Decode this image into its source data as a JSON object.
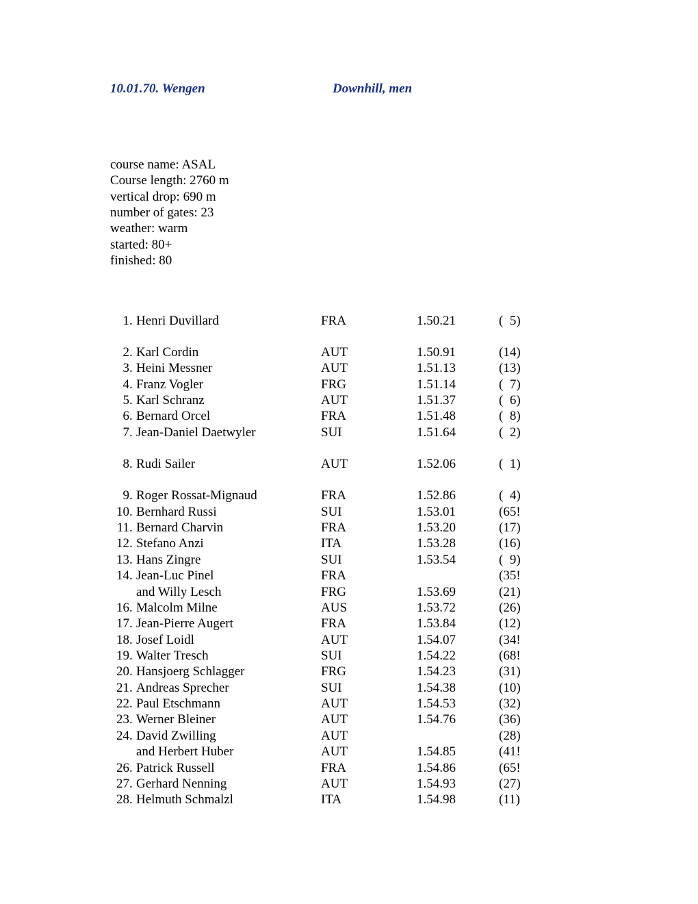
{
  "header": {
    "left": "10.01.70. Wengen",
    "right": "Downhill, men"
  },
  "course": {
    "name_label": "course name: ASAL",
    "length_label": "Course length: 2760 m",
    "drop_label": "vertical drop: 690 m",
    "gates_label": "number of gates: 23",
    "weather_label": "weather: warm",
    "started_label": "started: 80+",
    "finished_label": "finished: 80"
  },
  "results": [
    {
      "rank": "1",
      "sep": ". ",
      "name": "Henri Duvillard",
      "country": "FRA",
      "time": "1.50.21",
      "start": "(  5)",
      "gap_after": true
    },
    {
      "rank": "2",
      "sep": ". ",
      "name": "Karl Cordin",
      "country": "AUT",
      "time": "1.50.91",
      "start": "(14)"
    },
    {
      "rank": "3",
      "sep": ". ",
      "name": "Heini Messner",
      "country": "AUT",
      "time": "1.51.13",
      "start": "(13)"
    },
    {
      "rank": "4",
      "sep": ". ",
      "name": "Franz Vogler",
      "country": "FRG",
      "time": "1.51.14",
      "start": "(  7)"
    },
    {
      "rank": "5",
      "sep": ". ",
      "name": "Karl Schranz",
      "country": "AUT",
      "time": "1.51.37",
      "start": "(  6)"
    },
    {
      "rank": "6",
      "sep": ". ",
      "name": "Bernard Orcel",
      "country": "FRA",
      "time": "1.51.48",
      "start": "(  8)"
    },
    {
      "rank": "7",
      "sep": ". ",
      "name": "Jean-Daniel Daetwyler",
      "country": "SUI",
      "time": "1.51.64",
      "start": "(  2)",
      "gap_after": true
    },
    {
      "rank": "8",
      "sep": ". ",
      "name": "Rudi Sailer",
      "country": "AUT",
      "time": "1.52.06",
      "start": "(  1)",
      "gap_after": true
    },
    {
      "rank": "9",
      "sep": ". ",
      "name": "Roger Rossat-Mignaud",
      "country": "FRA",
      "time": "1.52.86",
      "start": "(  4)"
    },
    {
      "rank": "10",
      "sep": ". ",
      "name": "Bernhard Russi",
      "country": "SUI",
      "time": "1.53.01",
      "start": "(65!"
    },
    {
      "rank": "11",
      "sep": ". ",
      "name": "Bernard Charvin",
      "country": "FRA",
      "time": "1.53.20",
      "start": "(17)"
    },
    {
      "rank": "12",
      "sep": ". ",
      "name": "Stefano Anzi",
      "country": "ITA",
      "time": "1.53.28",
      "start": "(16)"
    },
    {
      "rank": "13",
      "sep": ". ",
      "name": "Hans Zingre",
      "country": "SUI",
      "time": "1.53.54",
      "start": "(  9)"
    },
    {
      "rank": "14",
      "sep": ". ",
      "name": "Jean-Luc Pinel",
      "country": "FRA",
      "time": "",
      "start": "(35!"
    },
    {
      "rank": "",
      "sep": "",
      "name": "and Willy Lesch",
      "country": "FRG",
      "time": "1.53.69",
      "start": "(21)"
    },
    {
      "rank": "16",
      "sep": ". ",
      "name": "Malcolm Milne",
      "country": "AUS",
      "time": "1.53.72",
      "start": "(26)"
    },
    {
      "rank": "17",
      "sep": ". ",
      "name": "Jean-Pierre Augert",
      "country": "FRA",
      "time": "1.53.84",
      "start": "(12)"
    },
    {
      "rank": "18",
      "sep": ". ",
      "name": "Josef Loidl",
      "country": "AUT",
      "time": "1.54.07",
      "start": "(34!"
    },
    {
      "rank": "19",
      "sep": ". ",
      "name": "Walter Tresch",
      "country": "SUI",
      "time": "1.54.22",
      "start": "(68!"
    },
    {
      "rank": "20",
      "sep": ". ",
      "name": "Hansjoerg Schlagger",
      "country": "FRG",
      "time": "1.54.23",
      "start": "(31)"
    },
    {
      "rank": "21",
      "sep": ". ",
      "name": "Andreas Sprecher",
      "country": "SUI",
      "time": "1.54.38",
      "start": "(10)"
    },
    {
      "rank": "22",
      "sep": ". ",
      "name": "Paul Etschmann",
      "country": "AUT",
      "time": "1.54.53",
      "start": "(32)"
    },
    {
      "rank": "23",
      "sep": ". ",
      "name": "Werner Bleiner",
      "country": "AUT",
      "time": "1.54.76",
      "start": "(36)"
    },
    {
      "rank": "24",
      "sep": ". ",
      "name": "David Zwilling",
      "country": "AUT",
      "time": "",
      "start": "(28)"
    },
    {
      "rank": "",
      "sep": "",
      "name": "and Herbert Huber",
      "country": "AUT",
      "time": "1.54.85",
      "start": "(41!"
    },
    {
      "rank": "26",
      "sep": ". ",
      "name": "Patrick Russell",
      "country": "FRA",
      "time": "1.54.86",
      "start": "(65!"
    },
    {
      "rank": "27",
      "sep": ". ",
      "name": "Gerhard Nenning",
      "country": "AUT",
      "time": "1.54.93",
      "start": "(27)"
    },
    {
      "rank": "28",
      "sep": ". ",
      "name": "Helmuth Schmalzl",
      "country": "ITA",
      "time": "1.54.98",
      "start": "(11)"
    }
  ]
}
